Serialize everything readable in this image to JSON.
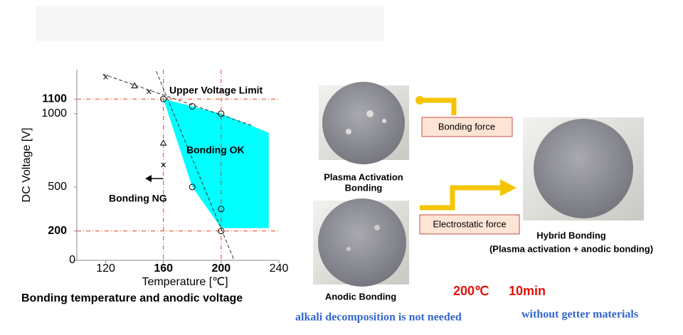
{
  "chart_data": {
    "type": "scatter",
    "title": "Bonding temperature and anodic voltage",
    "xlabel": "Temperature [℃]",
    "ylabel": "DC Voltage [V]",
    "xlim": [
      100,
      240
    ],
    "ylim": [
      0,
      1300
    ],
    "xticks": [
      120,
      160,
      200,
      240
    ],
    "xtick_colors": [
      "#000000",
      "#e8401c",
      "#e8401c",
      "#000000"
    ],
    "yticks": [
      0,
      200,
      500,
      1000,
      1100
    ],
    "ytick_colors": [
      "#000000",
      "#e8401c",
      "#000000",
      "#000000",
      "#e8401c"
    ],
    "reference_lines": {
      "color": "#e8401c",
      "x": [
        160,
        200
      ],
      "y": [
        200,
        1100
      ]
    },
    "region": {
      "color": "#00ffff",
      "x": [
        160,
        180,
        200,
        233,
        233,
        200,
        180,
        160
      ],
      "y": [
        1100,
        1050,
        1000,
        870,
        220,
        220,
        500,
        1100
      ]
    },
    "lines": [
      {
        "x": [
          118,
          222
        ],
        "y": [
          1270,
          917
        ]
      },
      {
        "x": [
          155,
          209
        ],
        "y": [
          1290,
          0
        ]
      }
    ],
    "series": [
      {
        "marker": "circle",
        "x": [
          160,
          180,
          200,
          180,
          200,
          200
        ],
        "y": [
          1100,
          1050,
          1000,
          500,
          350,
          200
        ]
      },
      {
        "marker": "triangle",
        "x": [
          140,
          160
        ],
        "y": [
          1190,
          800
        ]
      },
      {
        "marker": "cross",
        "x": [
          120,
          150,
          160
        ],
        "y": [
          1250,
          1150,
          650
        ]
      }
    ],
    "annotations": [
      "Upper Voltage Limit",
      "Bonding OK",
      "Bonding NG"
    ]
  },
  "diagram": {
    "plasma_label": [
      "Plasma Activation",
      "Bonding"
    ],
    "anodic_label": "Anodic  Bonding",
    "bonding_force": "Bonding force",
    "electrostatic_force": "Electrostatic force",
    "hybrid_label": [
      "Hybrid Bonding",
      "(Plasma activation + anodic bonding)"
    ],
    "temperature": "200℃",
    "time": "10min",
    "note_left": "alkali decomposition is not needed",
    "note_right": "without getter materials"
  }
}
